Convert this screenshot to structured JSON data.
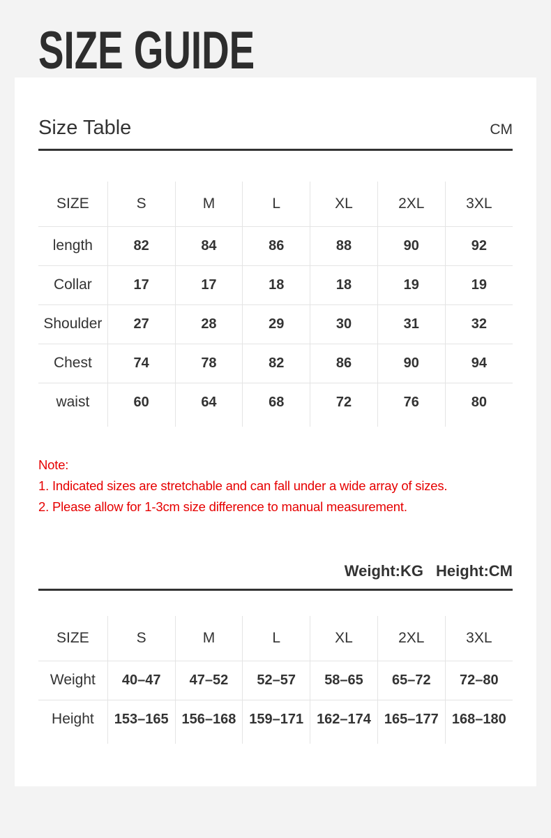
{
  "page": {
    "title": "SIZE GUIDE"
  },
  "size_table": {
    "heading": "Size Table",
    "unit": "CM",
    "columns": [
      "SIZE",
      "S",
      "M",
      "L",
      "XL",
      "2XL",
      "3XL"
    ],
    "rows": [
      {
        "label": "length",
        "values": [
          "82",
          "84",
          "86",
          "88",
          "90",
          "92"
        ]
      },
      {
        "label": "Collar",
        "values": [
          "17",
          "17",
          "18",
          "18",
          "19",
          "19"
        ]
      },
      {
        "label": "Shoulder",
        "values": [
          "27",
          "28",
          "29",
          "30",
          "31",
          "32"
        ]
      },
      {
        "label": "Chest",
        "values": [
          "74",
          "78",
          "82",
          "86",
          "90",
          "94"
        ]
      },
      {
        "label": "waist",
        "values": [
          "60",
          "64",
          "68",
          "72",
          "76",
          "80"
        ]
      }
    ]
  },
  "note": {
    "heading": "Note:",
    "lines": [
      "1. Indicated sizes are stretchable and can fall under a wide array of sizes.",
      "2. Please allow for 1-3cm size difference to manual measurement."
    ]
  },
  "body_table": {
    "weight_unit_label": "Weight:KG",
    "height_unit_label": "Height:CM",
    "columns": [
      "SIZE",
      "S",
      "M",
      "L",
      "XL",
      "2XL",
      "3XL"
    ],
    "rows": [
      {
        "label": "Weight",
        "values": [
          "40–47",
          "47–52",
          "52–57",
          "58–65",
          "65–72",
          "72–80"
        ]
      },
      {
        "label": "Height",
        "values": [
          "153–165",
          "156–168",
          "159–171",
          "162–174",
          "165–177",
          "168–180"
        ]
      }
    ]
  },
  "colors": {
    "page_bg": "#f3f3f3",
    "card_bg": "#ffffff",
    "text_dark": "#333333",
    "title_dark": "#2d2d2d",
    "rule_dark": "#333333",
    "divider_light": "#e4e4e4",
    "note_red": "#e60000"
  }
}
